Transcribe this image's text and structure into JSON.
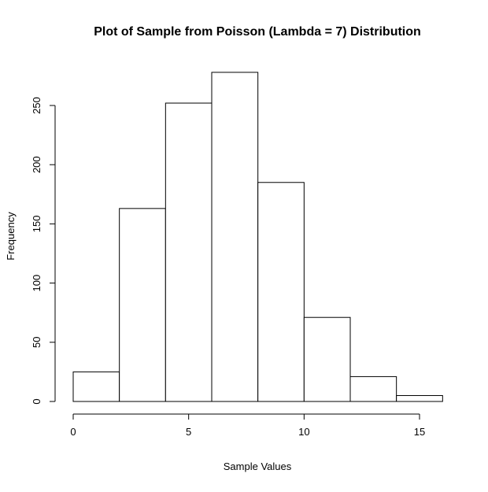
{
  "chart_data": {
    "type": "bar",
    "title": "Plot of Sample from Poisson (Lambda = 7) Distribution",
    "xlabel": "Sample Values",
    "ylabel": "Frequency",
    "bins": [
      [
        0,
        2
      ],
      [
        2,
        4
      ],
      [
        4,
        6
      ],
      [
        6,
        8
      ],
      [
        8,
        10
      ],
      [
        10,
        12
      ],
      [
        12,
        14
      ],
      [
        14,
        16
      ]
    ],
    "values": [
      25,
      163,
      252,
      278,
      185,
      71,
      21,
      5
    ],
    "xlim": [
      0,
      16
    ],
    "ylim": [
      0,
      250
    ],
    "xticks": [
      0,
      5,
      10,
      15
    ],
    "yticks": [
      0,
      50,
      100,
      150,
      200,
      250
    ],
    "grid": false,
    "bar_fill": "#ffffff",
    "bar_stroke": "#000000"
  }
}
